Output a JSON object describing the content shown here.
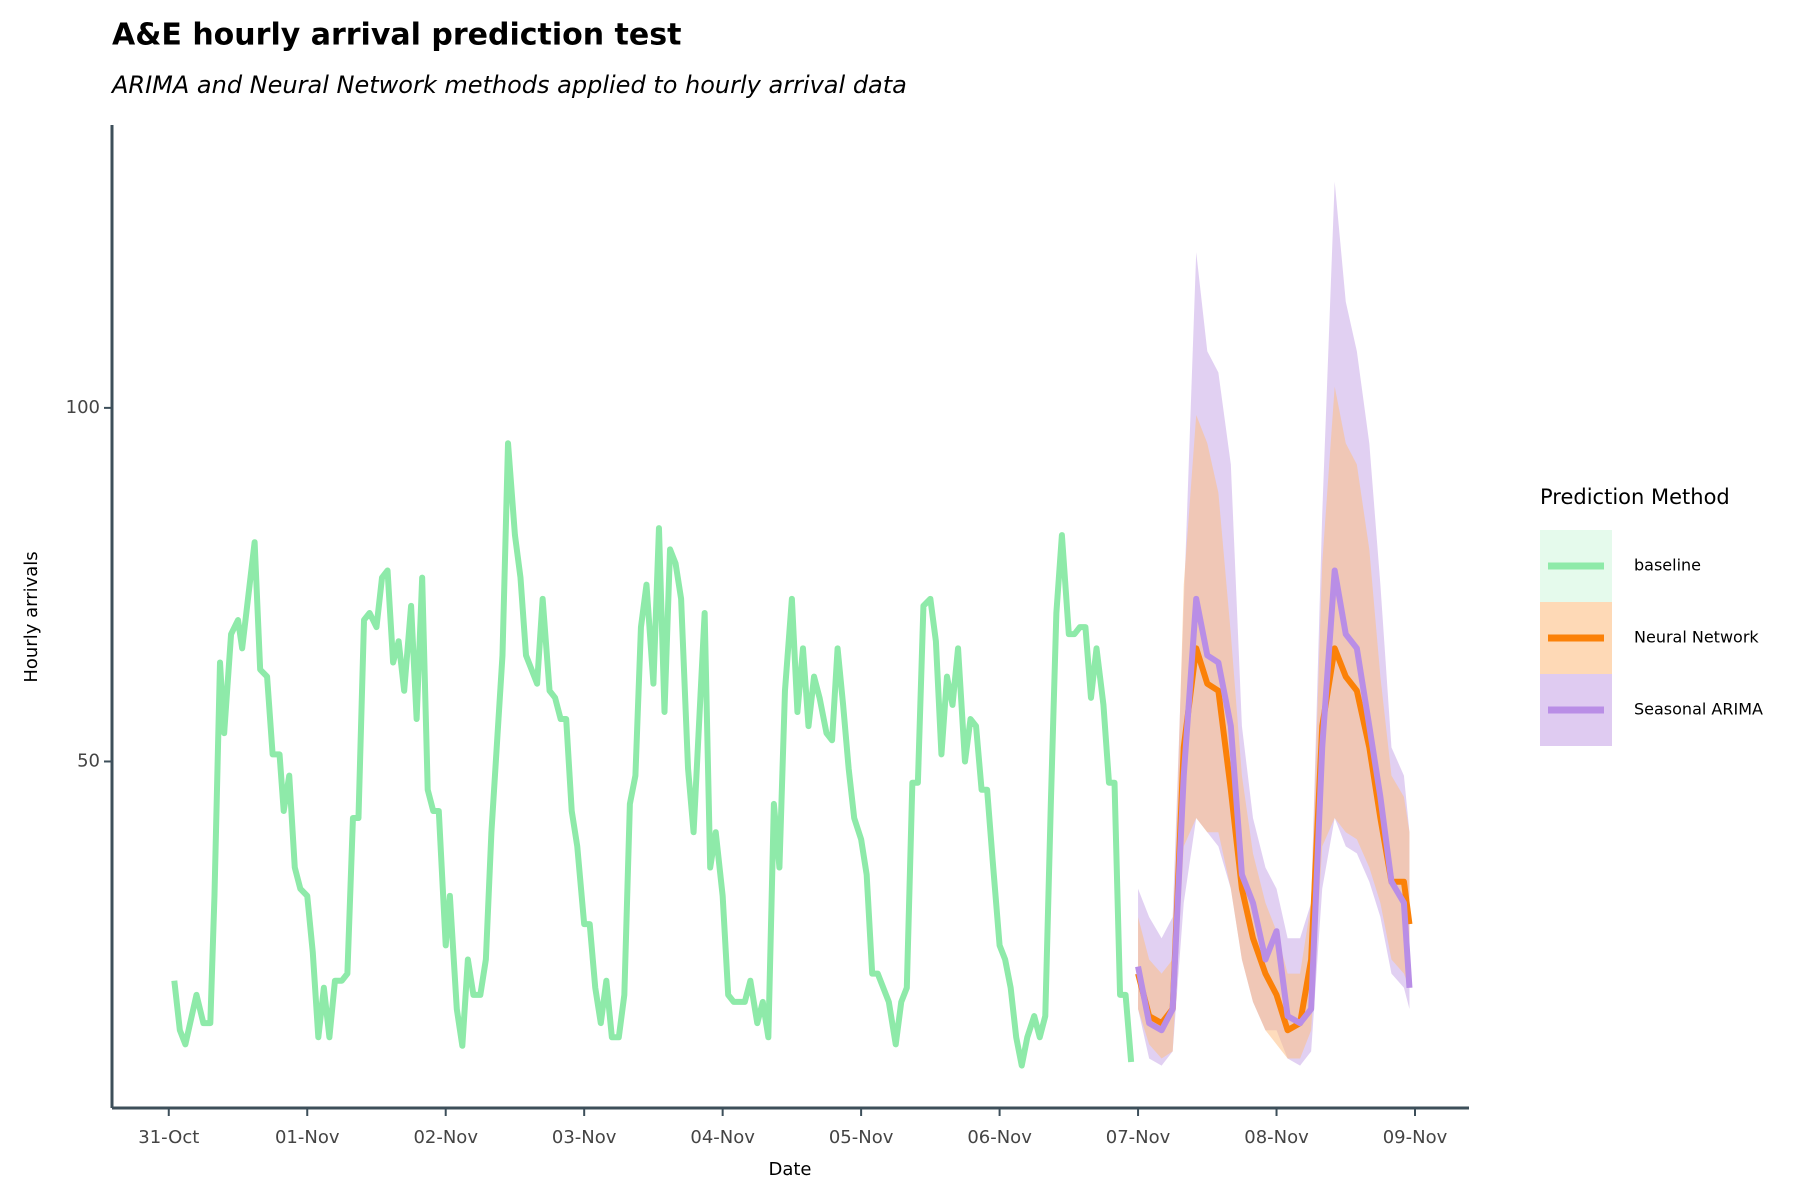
{
  "chart_data": {
    "type": "line",
    "title": "A&E hourly arrival prediction test",
    "subtitle": "ARIMA and Neural Network methods applied to hourly arrival data",
    "x_label": "Date",
    "y_label": "Hourly arrivals",
    "legend_title": "Prediction Method",
    "legend_position": "right",
    "grid": false,
    "xlim": [
      -0.41,
      9.39
    ],
    "ylim": [
      1,
      140
    ],
    "yticks": [
      50,
      100
    ],
    "xticks": [
      {
        "value": 0,
        "label": "31-Oct"
      },
      {
        "value": 1,
        "label": "01-Nov"
      },
      {
        "value": 2,
        "label": "02-Nov"
      },
      {
        "value": 3,
        "label": "03-Nov"
      },
      {
        "value": 4,
        "label": "04-Nov"
      },
      {
        "value": 5,
        "label": "05-Nov"
      },
      {
        "value": 6,
        "label": "06-Nov"
      },
      {
        "value": 7,
        "label": "07-Nov"
      },
      {
        "value": 8,
        "label": "08-Nov"
      },
      {
        "value": 9,
        "label": "09-Nov"
      }
    ],
    "series": [
      {
        "name": "baseline",
        "color": "#8eeaa9",
        "fill": "#d3f7df",
        "x": [
          0.04,
          0.08,
          0.12,
          0.2,
          0.25,
          0.3,
          0.33,
          0.37,
          0.4,
          0.45,
          0.5,
          0.53,
          0.62,
          0.66,
          0.71,
          0.75,
          0.8,
          0.83,
          0.87,
          0.91,
          0.95,
          1.0,
          1.04,
          1.08,
          1.12,
          1.16,
          1.2,
          1.25,
          1.29,
          1.33,
          1.37,
          1.41,
          1.45,
          1.5,
          1.54,
          1.58,
          1.62,
          1.66,
          1.7,
          1.75,
          1.79,
          1.83,
          1.87,
          1.91,
          1.95,
          2.0,
          2.03,
          2.08,
          2.12,
          2.16,
          2.2,
          2.25,
          2.29,
          2.33,
          2.41,
          2.45,
          2.5,
          2.54,
          2.58,
          2.66,
          2.7,
          2.75,
          2.79,
          2.83,
          2.87,
          2.91,
          2.95,
          3.0,
          3.04,
          3.08,
          3.12,
          3.16,
          3.2,
          3.25,
          3.29,
          3.33,
          3.37,
          3.41,
          3.45,
          3.5,
          3.54,
          3.58,
          3.62,
          3.66,
          3.7,
          3.75,
          3.79,
          3.87,
          3.91,
          3.95,
          4.0,
          4.04,
          4.08,
          4.16,
          4.2,
          4.25,
          4.29,
          4.33,
          4.37,
          4.41,
          4.45,
          4.5,
          4.54,
          4.58,
          4.62,
          4.66,
          4.7,
          4.75,
          4.79,
          4.83,
          4.87,
          4.91,
          4.95,
          5.0,
          5.04,
          5.08,
          5.12,
          5.2,
          5.25,
          5.29,
          5.33,
          5.37,
          5.41,
          5.45,
          5.5,
          5.54,
          5.58,
          5.62,
          5.66,
          5.7,
          5.75,
          5.79,
          5.83,
          5.87,
          5.91,
          5.95,
          6.0,
          6.04,
          6.08,
          6.12,
          6.16,
          6.2,
          6.25,
          6.29,
          6.33,
          6.37,
          6.41,
          6.45,
          6.5,
          6.54,
          6.58,
          6.62,
          6.66,
          6.7,
          6.75,
          6.79,
          6.83,
          6.87,
          6.91,
          6.95
        ],
        "values": [
          19,
          12,
          10,
          17,
          13,
          13,
          31,
          64,
          54,
          68,
          70,
          66,
          81,
          63,
          62,
          51,
          51,
          43,
          48,
          35,
          32,
          31,
          23,
          11,
          18,
          11,
          19,
          19,
          20,
          42,
          42,
          70,
          71,
          69,
          76,
          77,
          64,
          67,
          60,
          72,
          56,
          76,
          46,
          43,
          43,
          24,
          31,
          15,
          9.8,
          22,
          17,
          17,
          22,
          40,
          65,
          95,
          82,
          76,
          65,
          61,
          73,
          60,
          59,
          56,
          56,
          43,
          38,
          27,
          27,
          18,
          13,
          19,
          11,
          11,
          17,
          44,
          48,
          69,
          75,
          61,
          83,
          57,
          80,
          78,
          73,
          49,
          40,
          71,
          35,
          40,
          31,
          17,
          16,
          16,
          19,
          13,
          16,
          11,
          44,
          35,
          60,
          73,
          57,
          66,
          55,
          62,
          59,
          54,
          53,
          66,
          58,
          49,
          42,
          39,
          34,
          20,
          20,
          16,
          10,
          16,
          18,
          47,
          47,
          72,
          73,
          67,
          51,
          62,
          58,
          66,
          50,
          56,
          55,
          46,
          46,
          36,
          24,
          22,
          18,
          11,
          7,
          11,
          14,
          11,
          14,
          44,
          71,
          82,
          68,
          68,
          69,
          69,
          59,
          66,
          58,
          47,
          47,
          17,
          17,
          7.5
        ]
      },
      {
        "name": "Neural Network",
        "color": "#fb8108",
        "fill": "#fdbf85",
        "x": [
          7.0,
          7.08,
          7.17,
          7.25,
          7.33,
          7.42,
          7.5,
          7.58,
          7.67,
          7.75,
          7.83,
          7.92,
          8.0,
          8.08,
          8.17,
          8.25,
          8.33,
          8.42,
          8.5,
          8.58,
          8.67,
          8.75,
          8.83,
          8.92,
          8.96
        ],
        "values": [
          20,
          14,
          13,
          15,
          52,
          66,
          61,
          60,
          46,
          32,
          25,
          20,
          17,
          12,
          13,
          22,
          55,
          66,
          62,
          60,
          52,
          42,
          33,
          33,
          27
        ],
        "lower": [
          15,
          10,
          8,
          9,
          38,
          42,
          40,
          40,
          32,
          22,
          16,
          12,
          10,
          8,
          8,
          12,
          38,
          42,
          40,
          39,
          35,
          30,
          22,
          20,
          18
        ],
        "upper": [
          28,
          22,
          20,
          22,
          75,
          99,
          95,
          88,
          68,
          48,
          37,
          30,
          26,
          20,
          20,
          30,
          78,
          103,
          95,
          92,
          80,
          62,
          48,
          45,
          40
        ]
      },
      {
        "name": "Seasonal ARIMA",
        "color": "#b98ee6",
        "fill": "#c9a9e8",
        "x": [
          7.0,
          7.08,
          7.17,
          7.25,
          7.33,
          7.42,
          7.5,
          7.58,
          7.67,
          7.75,
          7.83,
          7.92,
          8.0,
          8.08,
          8.17,
          8.25,
          8.33,
          8.42,
          8.5,
          8.58,
          8.67,
          8.75,
          8.83,
          8.92,
          8.96
        ],
        "values": [
          21,
          13,
          12,
          15,
          48,
          73,
          65,
          64,
          55,
          34,
          30,
          22,
          26,
          14,
          13,
          15,
          52,
          77,
          68,
          66,
          55,
          45,
          33,
          30,
          18
        ],
        "lower": [
          15,
          8,
          7,
          9,
          30,
          42,
          40,
          38,
          32,
          22,
          16,
          12,
          12,
          8,
          7,
          9,
          32,
          42,
          38,
          37,
          33,
          28,
          20,
          18,
          15
        ],
        "upper": [
          32,
          28,
          25,
          28,
          72,
          122,
          108,
          105,
          92,
          55,
          42,
          35,
          32,
          25,
          25,
          30,
          85,
          132,
          115,
          108,
          95,
          75,
          52,
          48,
          40
        ]
      }
    ]
  }
}
